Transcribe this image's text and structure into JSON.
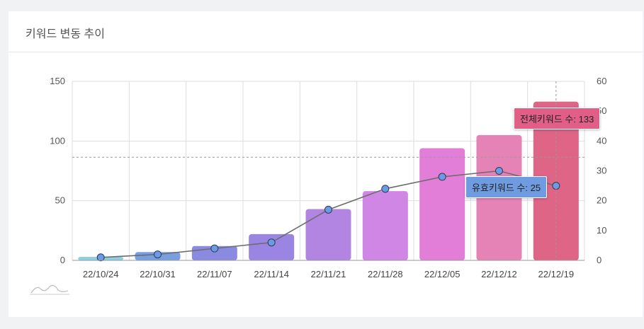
{
  "card": {
    "title": "키워드 변동 추이"
  },
  "tooltips": {
    "total": {
      "label": "전체키워드 수",
      "value": "133"
    },
    "valid": {
      "label": "유효키워드 수",
      "value": "25"
    }
  },
  "colors": {
    "bars": [
      "#8ecfe0",
      "#7a9fe0",
      "#8a8ae0",
      "#9a86e2",
      "#b285e2",
      "#d086e5",
      "#e27ed8",
      "#e582b6",
      "#de6586"
    ],
    "line": "#6d6d6d",
    "point_fill": "#6b9be4",
    "grid": "#dddddd",
    "crosshair": "#999999"
  },
  "chart_data": {
    "type": "bar",
    "categories": [
      "22/10/24",
      "22/10/31",
      "22/11/07",
      "22/11/14",
      "22/11/21",
      "22/11/28",
      "22/12/05",
      "22/12/12",
      "22/12/19"
    ],
    "series": [
      {
        "name": "전체키워드 수",
        "type": "bar",
        "axis": "left",
        "values": [
          3,
          7,
          12,
          22,
          43,
          58,
          94,
          105,
          133
        ]
      },
      {
        "name": "유효키워드 수",
        "type": "line",
        "axis": "right",
        "values": [
          1,
          2,
          4,
          6,
          17,
          24,
          28,
          30,
          25
        ]
      }
    ],
    "y_left": {
      "min": 0,
      "max": 150,
      "ticks": [
        0,
        50,
        100,
        150
      ]
    },
    "y_right": {
      "min": 0,
      "max": 60,
      "ticks": [
        0,
        10,
        20,
        30,
        40,
        50,
        60
      ]
    },
    "grid": true,
    "highlight_category": "22/12/19"
  }
}
